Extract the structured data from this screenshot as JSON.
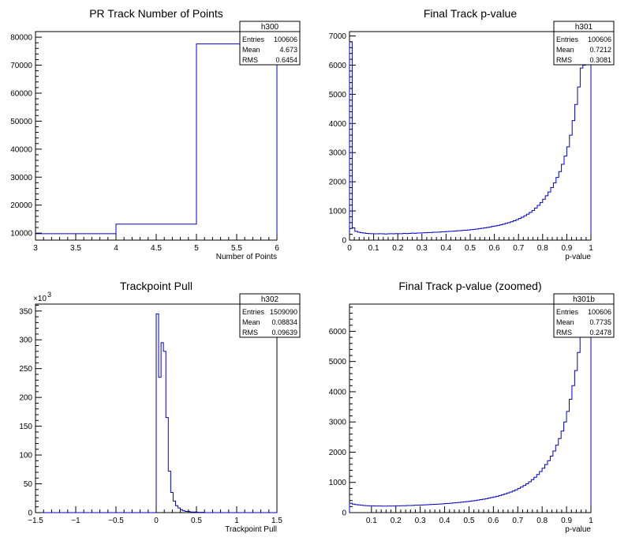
{
  "chart_data": [
    {
      "id": "h300",
      "type": "histogram",
      "title": "PR Track Number of Points",
      "xlabel": "Number of Points",
      "ylabel": "",
      "xlim": [
        3,
        6
      ],
      "ylim": [
        7500,
        82000
      ],
      "xticks": [
        3,
        3.5,
        4,
        4.5,
        5,
        5.5,
        6
      ],
      "xtick_labels": [
        "3",
        "3.5",
        "4",
        "4.5",
        "5",
        "5.5",
        "6"
      ],
      "yticks": [
        10000,
        20000,
        30000,
        40000,
        50000,
        60000,
        70000,
        80000
      ],
      "ytick_labels": [
        "10000",
        "20000",
        "30000",
        "40000",
        "50000",
        "60000",
        "70000",
        "80000"
      ],
      "multiplier": "",
      "bin_edges": [
        3,
        4,
        5,
        6
      ],
      "values": [
        9800,
        13200,
        77600
      ],
      "line_color": "#0000cc",
      "stats": {
        "name": "h300",
        "entries_label": "Entries",
        "entries": "100606",
        "mean_label": "Mean",
        "mean": "4.673",
        "rms_label": "RMS",
        "rms": "0.6454"
      }
    },
    {
      "id": "h301",
      "type": "histogram",
      "title": "Final Track p-value",
      "xlabel": "p-value",
      "ylabel": "",
      "xlim": [
        0,
        1
      ],
      "ylim": [
        0,
        7150
      ],
      "xticks": [
        0,
        0.1,
        0.2,
        0.3,
        0.4,
        0.5,
        0.6,
        0.7,
        0.8,
        0.9,
        1
      ],
      "xtick_labels": [
        "0",
        "0.1",
        "0.2",
        "0.3",
        "0.4",
        "0.5",
        "0.6",
        "0.7",
        "0.8",
        "0.9",
        "1"
      ],
      "yticks": [
        0,
        1000,
        2000,
        3000,
        4000,
        5000,
        6000,
        7000
      ],
      "ytick_labels": [
        "0",
        "1000",
        "2000",
        "3000",
        "4000",
        "5000",
        "6000",
        "7000"
      ],
      "multiplier": "",
      "bin_edges_range": [
        0,
        1
      ],
      "values": [
        6800,
        420,
        300,
        270,
        255,
        245,
        230,
        225,
        220,
        215,
        215,
        220,
        215,
        210,
        215,
        220,
        215,
        225,
        220,
        220,
        230,
        225,
        230,
        240,
        235,
        245,
        245,
        250,
        255,
        260,
        260,
        270,
        270,
        275,
        285,
        285,
        295,
        300,
        305,
        310,
        320,
        325,
        335,
        340,
        350,
        360,
        370,
        380,
        395,
        405,
        420,
        435,
        450,
        470,
        485,
        505,
        525,
        550,
        575,
        600,
        630,
        665,
        700,
        740,
        785,
        835,
        890,
        950,
        1020,
        1100,
        1190,
        1290,
        1400,
        1520,
        1650,
        1800,
        1960,
        2150,
        2350,
        2600,
        2880,
        3200,
        3600,
        4100,
        4650,
        5250,
        5900,
        6000,
        6500,
        7000
      ],
      "line_color": "#0000cc",
      "stats": {
        "name": "h301",
        "entries_label": "Entries",
        "entries": "100606",
        "mean_label": "Mean",
        "mean": "0.7212",
        "rms_label": "RMS",
        "rms": "0.3081"
      }
    },
    {
      "id": "h302",
      "type": "histogram",
      "title": "Trackpoint Pull",
      "xlabel": "Trackpoint Pull",
      "ylabel": "",
      "xlim": [
        -1.5,
        1.5
      ],
      "ylim": [
        0,
        362
      ],
      "xticks": [
        -1.5,
        -1,
        -0.5,
        0,
        0.5,
        1,
        1.5
      ],
      "xtick_labels": [
        "−1.5",
        "−1",
        "−0.5",
        "0",
        "0.5",
        "1",
        "1.5"
      ],
      "yticks": [
        0,
        50,
        100,
        150,
        200,
        250,
        300,
        350
      ],
      "ytick_labels": [
        "0",
        "50",
        "100",
        "150",
        "200",
        "250",
        "300",
        "350"
      ],
      "multiplier": "×10",
      "multiplier_exp": "3",
      "bin_edges_range": [
        -1.5,
        1.5
      ],
      "values": [
        0,
        0,
        0,
        0,
        0,
        0,
        0,
        0,
        0,
        0,
        0,
        0,
        0,
        0,
        0,
        0,
        0,
        0,
        0,
        0,
        0,
        0,
        0,
        0,
        0,
        0,
        0,
        0,
        0,
        0,
        0,
        0,
        0,
        0,
        0,
        0,
        0,
        0,
        0,
        0,
        0,
        0,
        0,
        0,
        0,
        0,
        0,
        0,
        0,
        0,
        345,
        235,
        295,
        280,
        165,
        72,
        35,
        20,
        12,
        8,
        5,
        3,
        2,
        2,
        1,
        1,
        1,
        0.5,
        0.5,
        0.5,
        0,
        0,
        0,
        0,
        0,
        0,
        0,
        0,
        0,
        0,
        0,
        0,
        0,
        0,
        0,
        0,
        0,
        0,
        0,
        0,
        0,
        0,
        0,
        0,
        0,
        0,
        0,
        0,
        0,
        0
      ],
      "line_color": "#0000cc",
      "stats": {
        "name": "h302",
        "entries_label": "Entries",
        "entries": "1509090",
        "mean_label": "Mean",
        "mean": "0.08834",
        "rms_label": "RMS",
        "rms": "0.09639"
      }
    },
    {
      "id": "h301b",
      "type": "histogram",
      "title": "Final Track p-value (zoomed)",
      "xlabel": "p-value",
      "ylabel": "",
      "xlim": [
        0.01,
        1
      ],
      "ylim": [
        0,
        6900
      ],
      "xticks": [
        0.1,
        0.2,
        0.3,
        0.4,
        0.5,
        0.6,
        0.7,
        0.8,
        0.9,
        1
      ],
      "xtick_labels": [
        "0.1",
        "0.2",
        "0.3",
        "0.4",
        "0.5",
        "0.6",
        "0.7",
        "0.8",
        "0.9",
        "1"
      ],
      "yticks": [
        0,
        1000,
        2000,
        3000,
        4000,
        5000,
        6000
      ],
      "ytick_labels": [
        "0",
        "1000",
        "2000",
        "3000",
        "4000",
        "5000",
        "6000"
      ],
      "multiplier": "",
      "bin_edges_range": [
        0.01,
        1
      ],
      "values": [
        310,
        280,
        265,
        255,
        245,
        235,
        230,
        225,
        225,
        220,
        220,
        220,
        215,
        215,
        220,
        220,
        220,
        225,
        225,
        230,
        230,
        235,
        235,
        240,
        245,
        245,
        250,
        255,
        260,
        265,
        270,
        275,
        280,
        285,
        290,
        300,
        305,
        310,
        320,
        330,
        335,
        345,
        355,
        365,
        375,
        390,
        400,
        415,
        430,
        445,
        460,
        480,
        500,
        520,
        540,
        565,
        590,
        620,
        650,
        680,
        715,
        755,
        800,
        845,
        900,
        955,
        1020,
        1090,
        1170,
        1260,
        1360,
        1470,
        1590,
        1720,
        1870,
        2040,
        2230,
        2450,
        2700,
        3000,
        3350,
        3750,
        4200,
        4700,
        5300,
        5950,
        6100,
        6500,
        6800
      ],
      "line_color": "#0000cc",
      "stats": {
        "name": "h301b",
        "entries_label": "Entries",
        "entries": "100606",
        "mean_label": "Mean",
        "mean": "0.7735",
        "rms_label": "RMS",
        "rms": "0.2478"
      }
    }
  ]
}
